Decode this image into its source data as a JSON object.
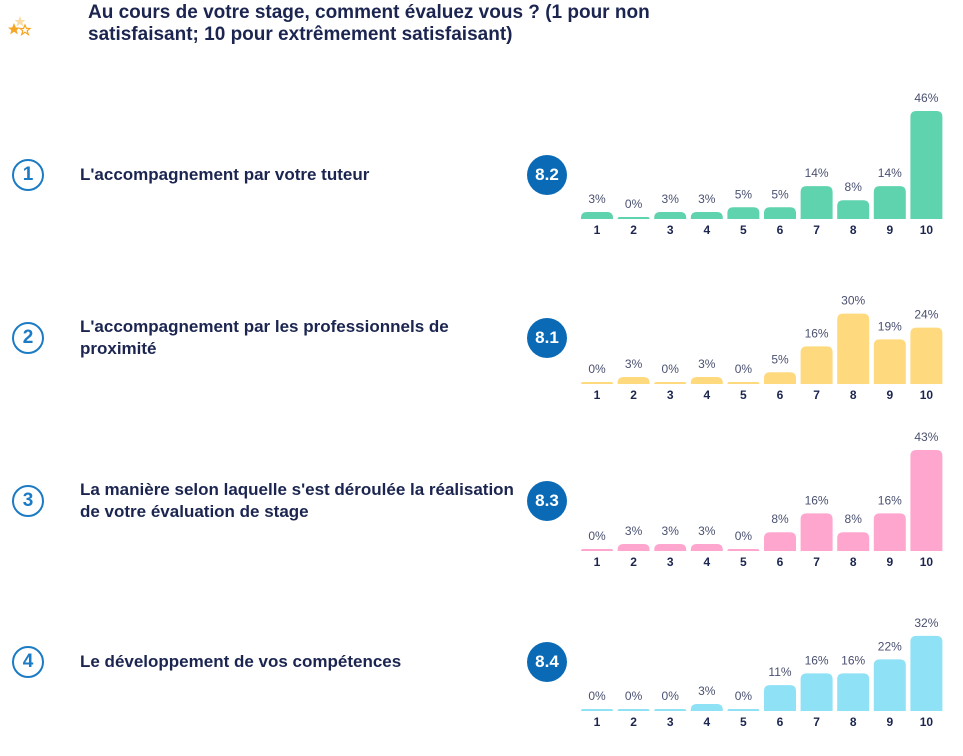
{
  "header": {
    "icon": "stars-icon",
    "title": "Au cours de votre stage, comment évaluez vous ? (1 pour non satisfaisant; 10 pour extrêmement satisfaisant)"
  },
  "questions": [
    {
      "number": "1",
      "label": "L'accompagnement par votre tuteur",
      "score": "8.2",
      "color": "#5fd3ad"
    },
    {
      "number": "2",
      "label": "L'accompagnement par les professionnels de proximité",
      "score": "8.1",
      "color": "#ffd97d"
    },
    {
      "number": "3",
      "label": "La manière selon laquelle s'est déroulée la réalisation de votre évaluation de stage",
      "score": "8.3",
      "color": "#ffa6cf"
    },
    {
      "number": "4",
      "label": "Le développement de vos compétences",
      "score": "8.4",
      "color": "#8fe1f6"
    }
  ],
  "chart_data": [
    {
      "type": "bar",
      "title": "L'accompagnement par votre tuteur",
      "categories": [
        "1",
        "2",
        "3",
        "4",
        "5",
        "6",
        "7",
        "8",
        "9",
        "10"
      ],
      "values": [
        3,
        0,
        3,
        3,
        5,
        5,
        14,
        8,
        14,
        46
      ],
      "value_suffix": "%",
      "ylim": [
        0,
        46
      ]
    },
    {
      "type": "bar",
      "title": "L'accompagnement par les professionnels de proximité",
      "categories": [
        "1",
        "2",
        "3",
        "4",
        "5",
        "6",
        "7",
        "8",
        "9",
        "10"
      ],
      "values": [
        0,
        3,
        0,
        3,
        0,
        5,
        16,
        30,
        19,
        24
      ],
      "value_suffix": "%",
      "ylim": [
        0,
        46
      ]
    },
    {
      "type": "bar",
      "title": "La manière selon laquelle s'est déroulée la réalisation de votre évaluation de stage",
      "categories": [
        "1",
        "2",
        "3",
        "4",
        "5",
        "6",
        "7",
        "8",
        "9",
        "10"
      ],
      "values": [
        0,
        3,
        3,
        3,
        0,
        8,
        16,
        8,
        16,
        43
      ],
      "value_suffix": "%",
      "ylim": [
        0,
        46
      ]
    },
    {
      "type": "bar",
      "title": "Le développement de vos compétences",
      "categories": [
        "1",
        "2",
        "3",
        "4",
        "5",
        "6",
        "7",
        "8",
        "9",
        "10"
      ],
      "values": [
        0,
        0,
        0,
        3,
        0,
        11,
        16,
        16,
        22,
        32
      ],
      "value_suffix": "%",
      "ylim": [
        0,
        46
      ]
    }
  ]
}
